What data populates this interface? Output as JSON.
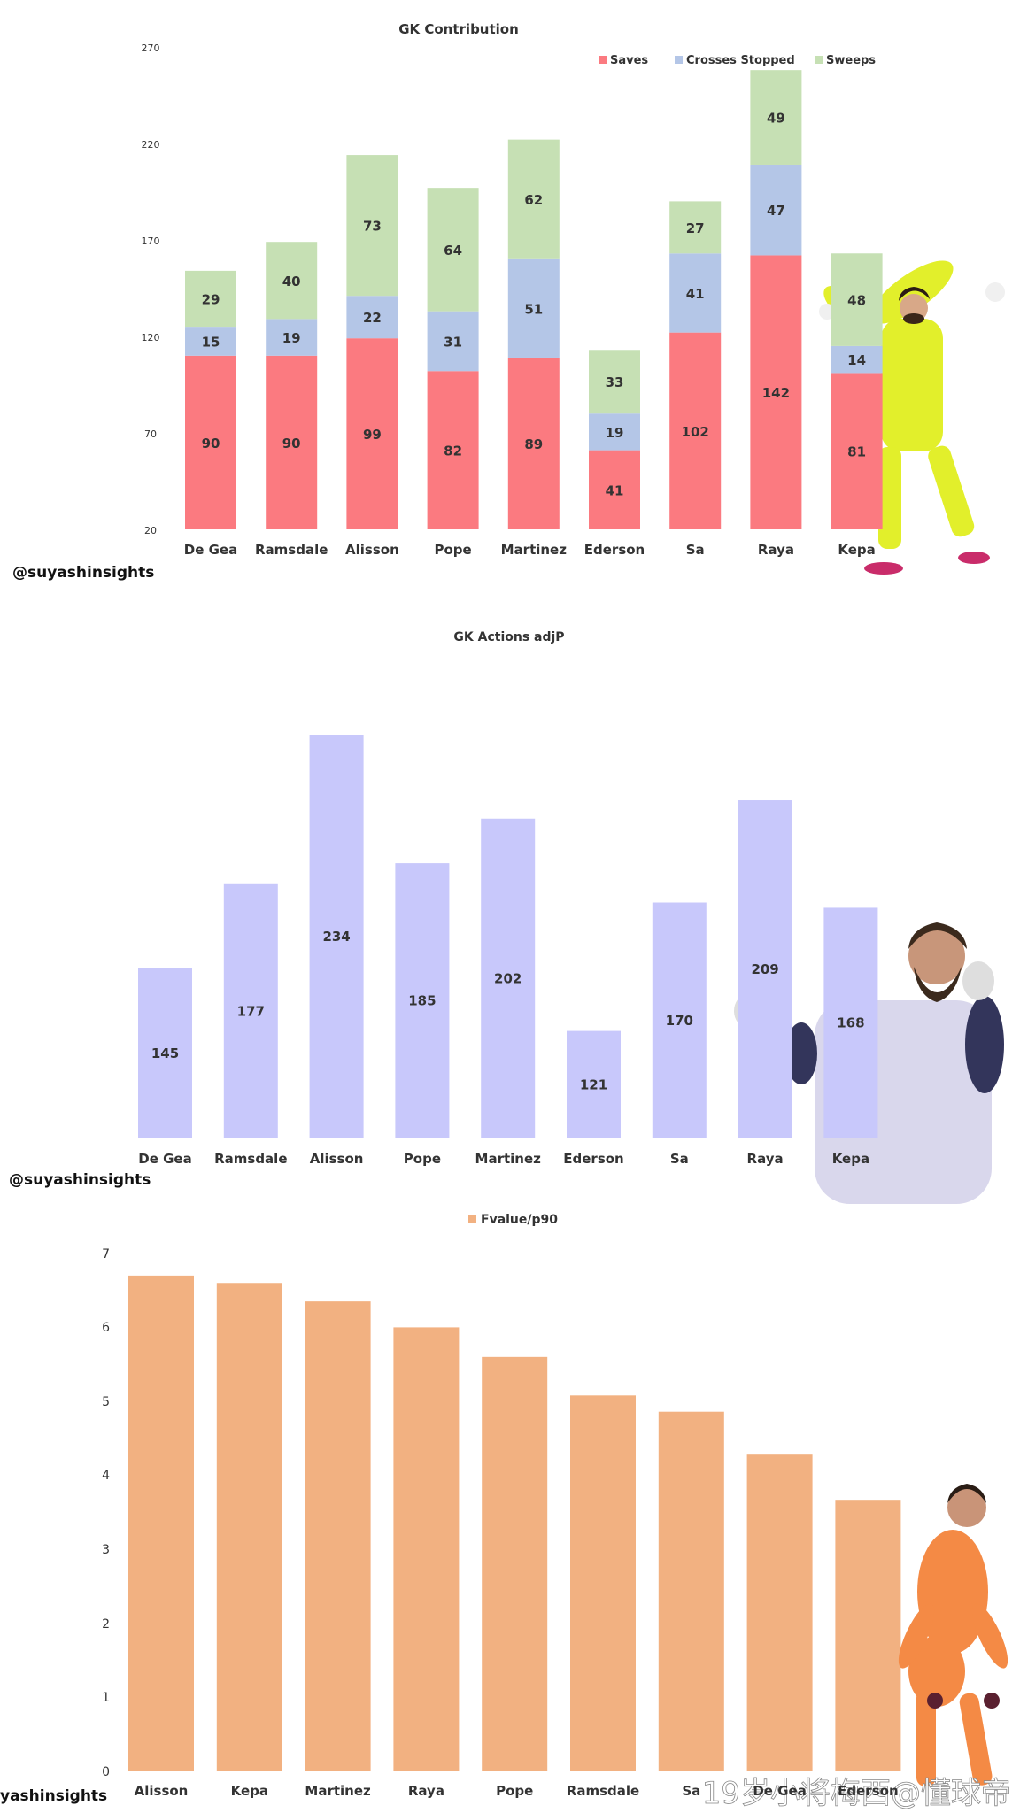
{
  "credit": "@suyashinsights",
  "credit_cropped": "yashinsights",
  "watermark": "19岁小将梅西@懂球帝",
  "colors": {
    "saves": "#fb7a80",
    "crosses": "#b4c6e7",
    "sweeps": "#c6e0b4",
    "actions": "#c8c8fb",
    "fvalue": "#f2b181",
    "kit_yellow": "#e2ef2b",
    "kit_lavender": "#d9d7ec",
    "kit_orange": "#f48a45"
  },
  "chart_data": [
    {
      "type": "bar",
      "stacked": true,
      "title": "GK Contribution",
      "categories": [
        "De Gea",
        "Ramsdale",
        "Alisson",
        "Pope",
        "Martinez",
        "Ederson",
        "Sa",
        "Raya",
        "Kepa"
      ],
      "series": [
        {
          "name": "Saves",
          "values": [
            90,
            90,
            99,
            82,
            89,
            41,
            102,
            142,
            81
          ]
        },
        {
          "name": "Crosses Stopped",
          "values": [
            15,
            19,
            22,
            31,
            51,
            19,
            41,
            47,
            14
          ]
        },
        {
          "name": "Sweeps",
          "values": [
            29,
            40,
            73,
            64,
            62,
            33,
            27,
            49,
            48
          ]
        }
      ],
      "yticks": [
        "20",
        "70",
        "120",
        "170",
        "220",
        "270"
      ],
      "ylim": [
        20,
        270
      ],
      "legend": "top-right",
      "grid": false
    },
    {
      "type": "bar",
      "title": "GK Actions adjP",
      "categories": [
        "De Gea",
        "Ramsdale",
        "Alisson",
        "Pope",
        "Martinez",
        "Ederson",
        "Sa",
        "Raya",
        "Kepa"
      ],
      "values": [
        145,
        177,
        234,
        185,
        202,
        121,
        170,
        209,
        168
      ],
      "ylim": [
        80,
        245
      ],
      "axis_visible": false,
      "grid": false
    },
    {
      "type": "bar",
      "title": "Fvalue/p90",
      "legend": "top-center",
      "categories": [
        "Alisson",
        "Kepa",
        "Martinez",
        "Raya",
        "Pope",
        "Ramsdale",
        "Sa",
        "De Gea",
        "Ederson"
      ],
      "values": [
        6.7,
        6.6,
        6.35,
        6.0,
        5.6,
        5.08,
        4.86,
        4.28,
        3.67
      ],
      "yticks": [
        "0",
        "1",
        "2",
        "3",
        "4",
        "5",
        "6",
        "7"
      ],
      "ylim": [
        0,
        7
      ],
      "grid": false
    }
  ]
}
